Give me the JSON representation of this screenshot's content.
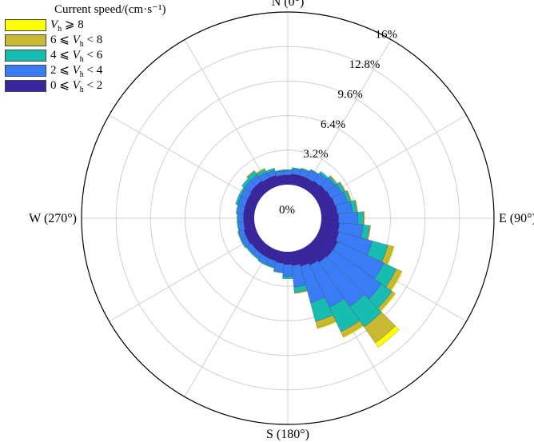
{
  "chart_data": {
    "type": "rose",
    "radial_ticks": [
      "0%",
      "3.2%",
      "6.4%",
      "9.6%",
      "12.8%",
      "16%"
    ],
    "radial_values": [
      0,
      3.2,
      6.4,
      9.6,
      12.8,
      16
    ],
    "rmax": 16,
    "direction_labels": {
      "north": "N (0°)",
      "east": "E (90°)",
      "south": "S (180°)",
      "west": "W (270°)"
    },
    "legend": {
      "title": "Current speed/(cm·s⁻¹)",
      "position": "top-left",
      "items": [
        {
          "text": "Vh ⩾ 8",
          "pre": "",
          "sym": "V",
          "sub": "h",
          "post": " ⩾ 8",
          "color": "#ffff00"
        },
        {
          "text": "6 ⩽ Vh < 8",
          "pre": "6 ⩽ ",
          "sym": "V",
          "sub": "h",
          "post": " < 8",
          "color": "#c8b832"
        },
        {
          "text": "4 ⩽ Vh < 6",
          "pre": "4 ⩽ ",
          "sym": "V",
          "sub": "h",
          "post": " < 6",
          "color": "#18bcb0"
        },
        {
          "text": "2 ⩽ Vh < 4",
          "pre": "2 ⩽ ",
          "sym": "V",
          "sub": "h",
          "post": " < 4",
          "color": "#3a7cf5"
        },
        {
          "text": "0 ⩽ Vh < 2",
          "pre": "0 ⩽ ",
          "sym": "V",
          "sub": "h",
          "post": " < 2",
          "color": "#3a25a0"
        }
      ]
    },
    "sectors": {
      "count": 36,
      "width_deg": 10,
      "centers_deg": [
        0,
        10,
        20,
        30,
        40,
        50,
        60,
        70,
        80,
        90,
        100,
        110,
        120,
        130,
        140,
        150,
        160,
        170,
        180,
        190,
        200,
        210,
        220,
        230,
        240,
        250,
        260,
        270,
        280,
        290,
        300,
        310,
        320,
        330,
        340,
        350
      ],
      "series": [
        {
          "name": "0 ⩽ Vh < 2",
          "values": [
            0.9,
            1.0,
            1.0,
            1.0,
            1.1,
            1.2,
            1.3,
            1.4,
            1.5,
            1.6,
            1.7,
            1.8,
            2.0,
            2.0,
            1.9,
            1.7,
            1.5,
            1.3,
            1.2,
            1.1,
            1.0,
            1.0,
            1.0,
            1.0,
            1.1,
            1.1,
            1.0,
            1.0,
            1.0,
            1.0,
            1.0,
            1.1,
            1.1,
            1.0,
            1.0,
            0.9
          ]
        },
        {
          "name": "2 ⩽ Vh < 4",
          "values": [
            0.4,
            0.5,
            0.6,
            0.8,
            0.9,
            1.0,
            1.1,
            1.2,
            1.4,
            1.8,
            2.2,
            3.2,
            4.7,
            5.5,
            5.0,
            4.3,
            3.5,
            2.0,
            1.1,
            0.8,
            0.6,
            0.6,
            0.5,
            0.5,
            0.5,
            0.5,
            0.5,
            0.5,
            0.6,
            0.7,
            0.7,
            0.7,
            0.7,
            0.6,
            0.5,
            0.4
          ]
        },
        {
          "name": "4 ⩽ Vh < 6",
          "values": [
            0.1,
            0.1,
            0.1,
            0.1,
            0.2,
            0.2,
            0.3,
            0.3,
            0.4,
            0.5,
            0.6,
            1.5,
            1.3,
            1.2,
            2.3,
            2.5,
            1.8,
            0.5,
            0.2,
            0.1,
            0.1,
            0.1,
            0.1,
            0.1,
            0.1,
            0.1,
            0.1,
            0.1,
            0.1,
            0.2,
            0.2,
            0.3,
            0.4,
            0.3,
            0.2,
            0.1
          ]
        },
        {
          "name": "6 ⩽ Vh < 8",
          "values": [
            0.0,
            0.0,
            0.0,
            0.0,
            0.0,
            0.1,
            0.1,
            0.1,
            0.1,
            0.1,
            0.1,
            0.5,
            0.5,
            0.3,
            1.8,
            0.5,
            0.6,
            0.1,
            0.0,
            0.0,
            0.0,
            0.0,
            0.0,
            0.0,
            0.0,
            0.0,
            0.0,
            0.0,
            0.0,
            0.0,
            0.0,
            0.0,
            0.1,
            0.1,
            0.0,
            0.0
          ]
        },
        {
          "name": "Vh ⩾ 8",
          "values": [
            0.0,
            0.0,
            0.0,
            0.0,
            0.0,
            0.0,
            0.0,
            0.0,
            0.0,
            0.0,
            0.0,
            0.1,
            0.1,
            0.1,
            0.5,
            0.1,
            0.1,
            0.0,
            0.0,
            0.0,
            0.0,
            0.0,
            0.0,
            0.0,
            0.0,
            0.0,
            0.0,
            0.0,
            0.0,
            0.0,
            0.0,
            0.0,
            0.0,
            0.0,
            0.0,
            0.0
          ]
        }
      ]
    },
    "grid": true
  }
}
